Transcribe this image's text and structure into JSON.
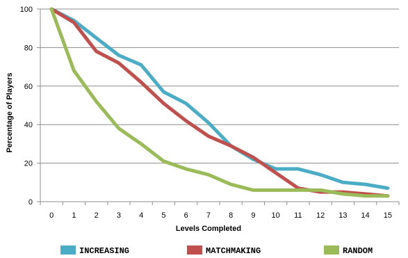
{
  "chart_data": {
    "type": "line",
    "xlabel": "Levels Completed",
    "ylabel": "Percentage of Players",
    "x": [
      0,
      1,
      2,
      3,
      4,
      5,
      6,
      7,
      8,
      9,
      10,
      11,
      12,
      13,
      14,
      15
    ],
    "xlim": [
      0,
      15
    ],
    "ylim": [
      0,
      100
    ],
    "yticks": [
      0,
      20,
      40,
      60,
      80,
      100
    ],
    "grid": "horizontal",
    "legend_position": "bottom",
    "series": [
      {
        "name": "INCREASING",
        "color": "#4bacc6",
        "values": [
          100,
          94,
          85,
          76,
          71,
          57,
          51,
          41,
          29,
          22,
          17,
          17,
          14,
          10,
          9,
          7
        ]
      },
      {
        "name": "MATCHMAKING",
        "color": "#c0504d",
        "values": [
          100,
          93,
          78,
          72,
          62,
          51,
          42,
          34,
          29,
          23,
          15,
          7,
          5,
          5,
          4,
          3
        ]
      },
      {
        "name": "RANDOM",
        "color": "#9bbb59",
        "values": [
          100,
          68,
          52,
          38,
          30,
          21,
          17,
          14,
          9,
          6,
          6,
          6,
          6,
          4,
          3,
          3
        ]
      }
    ]
  }
}
